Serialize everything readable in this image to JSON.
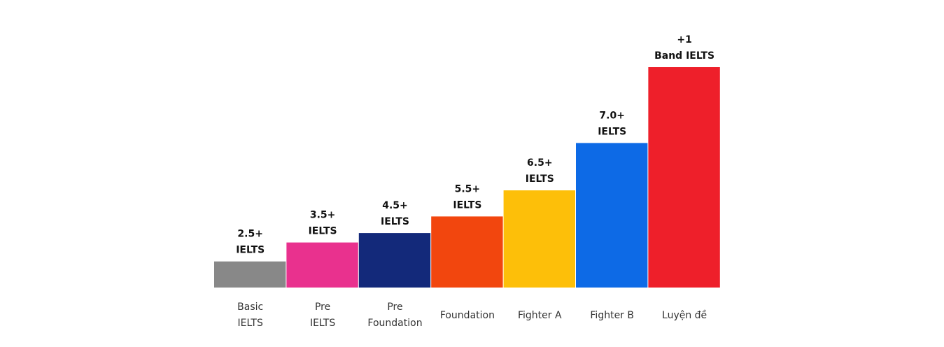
{
  "chart_data": {
    "type": "bar",
    "categories": [
      [
        "Basic",
        "IELTS"
      ],
      [
        "Pre",
        "IELTS"
      ],
      [
        "Pre",
        "Foundation"
      ],
      [
        "Foundation"
      ],
      [
        "Fighter A"
      ],
      [
        "Fighter B"
      ],
      [
        "Luyện đề"
      ]
    ],
    "values": [
      1.1,
      1.9,
      2.3,
      3.0,
      4.1,
      6.1,
      9.3
    ],
    "data_labels": [
      [
        "2.5+",
        "IELTS"
      ],
      [
        "3.5+",
        "IELTS"
      ],
      [
        "4.5+",
        "IELTS"
      ],
      [
        "5.5+",
        "IELTS"
      ],
      [
        "6.5+",
        "IELTS"
      ],
      [
        "7.0+",
        "IELTS"
      ],
      [
        "+1",
        "Band IELTS"
      ]
    ],
    "colors": [
      "#888888",
      "#E9318E",
      "#13297A",
      "#F2460E",
      "#FDBF09",
      "#0D6AE6",
      "#EE1F2A"
    ],
    "title": "",
    "xlabel": "",
    "ylabel": "",
    "ylim": [
      0,
      9.3
    ],
    "grid": false,
    "legend": "none"
  }
}
